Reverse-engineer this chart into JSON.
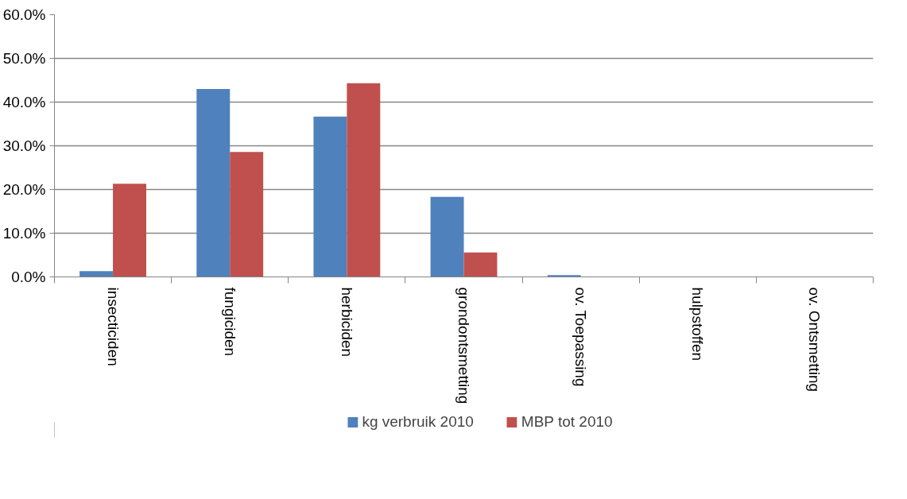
{
  "chart_data": {
    "type": "bar",
    "categories": [
      "insecticiden",
      "fungiciden",
      "herbiciden",
      "grondontsmetting",
      "ov. Toepassing",
      "hulpstoffen",
      "ov. Ontsmetting"
    ],
    "series": [
      {
        "name": "kg verbruik 2010",
        "color": "#4f81bd",
        "values": [
          1.3,
          43.0,
          36.7,
          18.3,
          0.4,
          0,
          0
        ]
      },
      {
        "name": "MBP tot 2010",
        "color": "#c0504d",
        "values": [
          21.3,
          28.6,
          44.3,
          5.6,
          0,
          0,
          0
        ]
      }
    ],
    "ylim": [
      0,
      60
    ],
    "yticks": [
      {
        "value": 0,
        "label": "0.0%"
      },
      {
        "value": 10,
        "label": "10.0%"
      },
      {
        "value": 20,
        "label": "20.0%"
      },
      {
        "value": 30,
        "label": "30.0%"
      },
      {
        "value": 40,
        "label": "40.0%"
      },
      {
        "value": 50,
        "label": "50.0%"
      },
      {
        "value": 60,
        "label": "60.0%"
      }
    ],
    "grid": "y",
    "legend": "bottom"
  }
}
